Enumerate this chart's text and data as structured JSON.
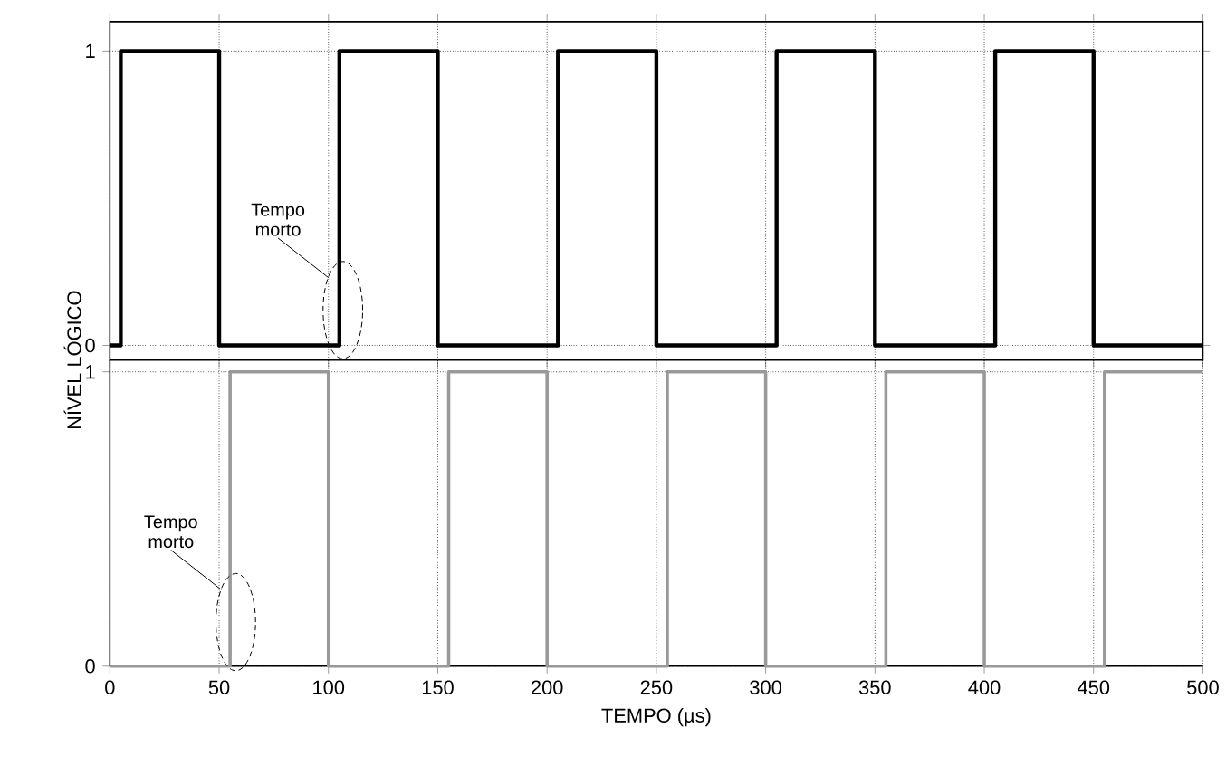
{
  "chart_data": [
    {
      "type": "step",
      "xlim": [
        0,
        500
      ],
      "ylim": [
        -0.05,
        1.1
      ],
      "xticks": [
        0,
        50,
        100,
        150,
        200,
        250,
        300,
        350,
        400,
        450,
        500
      ],
      "yticks": [
        0,
        1
      ],
      "tick_labels": "y",
      "grid": true,
      "ylabel": "NÍVEL LÓGICO",
      "series": [
        {
          "color": "#000000",
          "x": [
            0,
            5,
            50,
            105,
            150,
            205,
            250,
            305,
            350,
            405,
            450,
            500
          ],
          "values": [
            0,
            1,
            0,
            1,
            0,
            1,
            0,
            1,
            0,
            1,
            0,
            0
          ]
        }
      ],
      "annotations": [
        {
          "text": "Tempo morto",
          "x": 100,
          "y": 0.23
        }
      ]
    },
    {
      "type": "step",
      "xlim": [
        0,
        500
      ],
      "ylim": [
        0,
        1.04
      ],
      "xticks": [
        0,
        50,
        100,
        150,
        200,
        250,
        300,
        350,
        400,
        450,
        500
      ],
      "yticks": [
        0,
        1
      ],
      "grid": true,
      "xlabel": "TEMPO (µs)",
      "series": [
        {
          "color": "#999999",
          "x": [
            0,
            55,
            100,
            155,
            200,
            255,
            300,
            355,
            400,
            455,
            500
          ],
          "values": [
            0,
            1,
            0,
            1,
            0,
            1,
            0,
            1,
            0,
            1,
            1
          ]
        }
      ],
      "annotations": [
        {
          "text": "Tempo morto",
          "x": 51,
          "y": 0.26
        }
      ]
    }
  ]
}
